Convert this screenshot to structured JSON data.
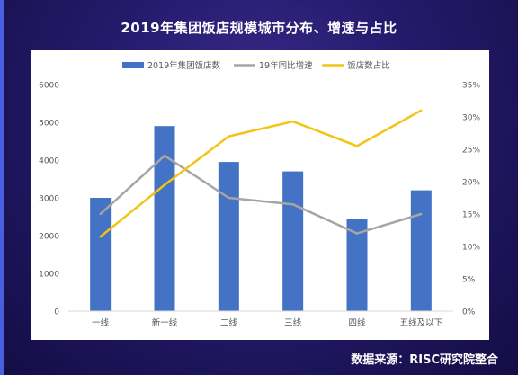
{
  "title": "2019年集团饭店规模城市分布、增速与占比",
  "source": "数据来源：RISC研究院整合",
  "chart_data": {
    "type": "bar",
    "categories": [
      "一线",
      "新一线",
      "二线",
      "三线",
      "四线",
      "五线及以下"
    ],
    "series": [
      {
        "name": "2019年集团饭店数",
        "type": "bar",
        "axis": "left",
        "color": "#4472c4",
        "values": [
          3000,
          4900,
          3950,
          3700,
          2450,
          3200
        ]
      },
      {
        "name": "19年同比增速",
        "type": "line",
        "axis": "right",
        "color": "#a5a5a5",
        "values": [
          15.0,
          24.0,
          17.5,
          16.5,
          12.0,
          15.0
        ]
      },
      {
        "name": "饭店数占比",
        "type": "line",
        "axis": "right",
        "color": "#f2c413",
        "values": [
          11.5,
          19.5,
          27.0,
          29.3,
          25.5,
          31.0
        ]
      }
    ],
    "ylim_left": [
      0,
      6000
    ],
    "ylim_right": [
      0,
      35
    ],
    "left_ticks": [
      "0",
      "1000",
      "2000",
      "3000",
      "4000",
      "5000",
      "6000"
    ],
    "right_ticks": [
      "0%",
      "5%",
      "10%",
      "15%",
      "20%",
      "25%",
      "30%",
      "35%"
    ],
    "legend_position": "top",
    "grid": false
  }
}
